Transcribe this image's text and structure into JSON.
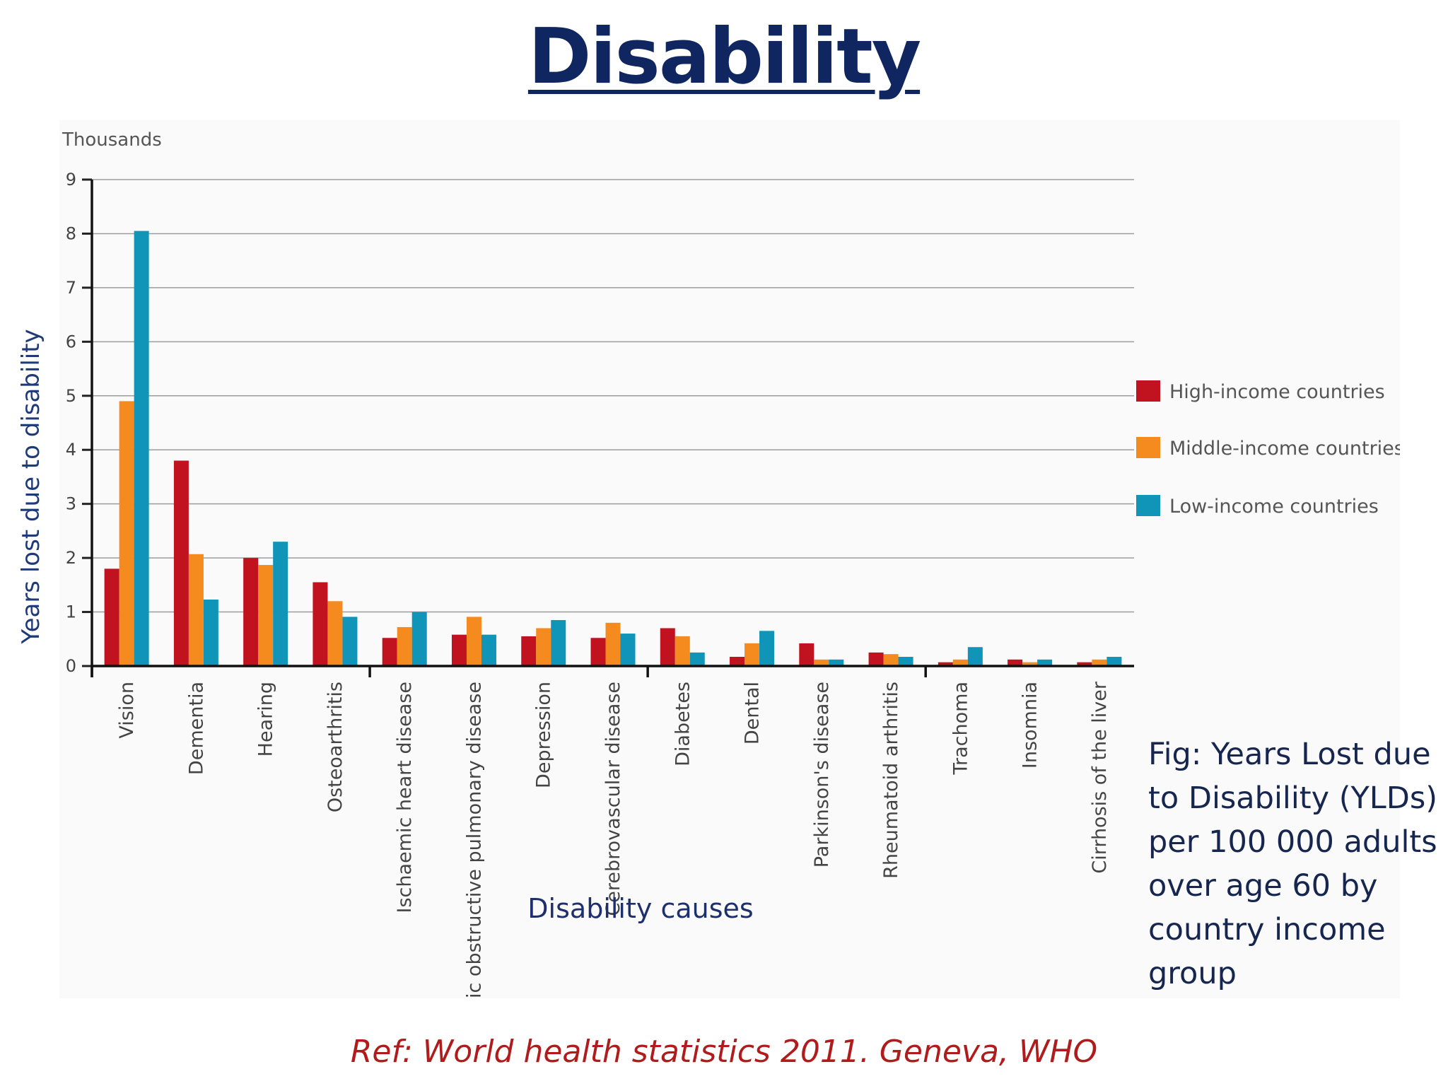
{
  "title": "Disability",
  "caption": "Fig: Years Lost due to Disability (YLDs) per 100 000 adults over age 60 by country income group",
  "reference": "Ref: World health statistics 2011. Geneva, WHO",
  "colors": {
    "high": "#c0121f",
    "middle": "#f58a1f",
    "low": "#1094b8",
    "title": "#0f2660",
    "ref": "#b01b1b"
  },
  "chart_data": {
    "type": "bar",
    "title": "",
    "units_label": "Thousands",
    "ylabel": "Years lost due to disability",
    "xlabel": "Disability causes",
    "ylim": [
      0,
      9
    ],
    "yticks": [
      0,
      1,
      2,
      3,
      4,
      5,
      6,
      7,
      8,
      9
    ],
    "grid": true,
    "legend_position": "right",
    "categories": [
      "Vision",
      "Dementia",
      "Hearing",
      "Osteoarthritis",
      "Ischaemic heart disease",
      "Chronic obstructive pulmonary disease",
      "Depression",
      "Cerebrovascular disease",
      "Diabetes",
      "Dental",
      "Parkinson's disease",
      "Rheumatoid arthritis",
      "Trachoma",
      "Insomnia",
      "Cirrhosis of the liver"
    ],
    "series": [
      {
        "name": "High-income countries",
        "color": "#c0121f",
        "values": [
          1.8,
          3.8,
          2.0,
          1.55,
          0.52,
          0.58,
          0.55,
          0.52,
          0.7,
          0.17,
          0.42,
          0.25,
          0.07,
          0.12,
          0.07
        ]
      },
      {
        "name": "Middle-income countries",
        "color": "#f58a1f",
        "values": [
          4.9,
          2.07,
          1.87,
          1.2,
          0.72,
          0.91,
          0.7,
          0.8,
          0.55,
          0.42,
          0.12,
          0.22,
          0.12,
          0.07,
          0.12
        ]
      },
      {
        "name": "Low-income countries",
        "color": "#1094b8",
        "values": [
          8.05,
          1.23,
          2.3,
          0.91,
          1.0,
          0.58,
          0.85,
          0.6,
          0.25,
          0.65,
          0.12,
          0.17,
          0.35,
          0.12,
          0.17
        ]
      }
    ]
  }
}
